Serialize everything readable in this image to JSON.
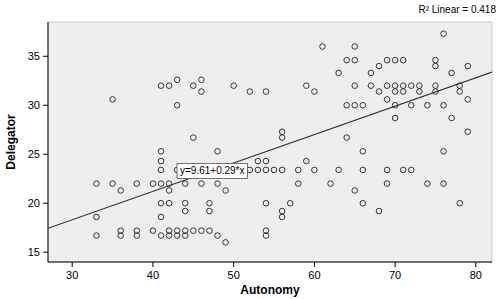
{
  "chart_data": {
    "type": "scatter",
    "x_label": "Autonomy",
    "y_label": "Delegator",
    "annotations": [
      "R² Linear = 0.418",
      "y=9.61+0.29*x"
    ],
    "fit": {
      "intercept": 9.61,
      "slope": 0.29
    },
    "xlim": [
      27,
      82
    ],
    "ylim": [
      14,
      38.5
    ],
    "xticks": [
      30,
      40,
      50,
      60,
      70,
      80
    ],
    "yticks": [
      15,
      20,
      25,
      30,
      35
    ],
    "grid": false,
    "marker": "open-circle",
    "color": "#222222",
    "x": [
      33,
      33,
      33,
      35,
      35,
      36,
      36,
      36,
      38,
      38,
      38,
      40,
      40,
      41,
      41,
      41,
      41,
      41,
      41,
      41,
      41,
      42,
      42,
      42,
      42,
      42,
      42,
      43,
      43,
      43,
      43,
      43,
      44,
      44,
      44,
      44,
      44,
      44,
      45,
      45,
      45,
      45,
      46,
      46,
      46,
      46,
      47,
      47,
      47,
      47,
      48,
      48,
      48,
      48,
      49,
      49,
      49,
      50,
      50,
      51,
      52,
      52,
      53,
      53,
      54,
      54,
      54,
      54,
      54,
      54,
      55,
      56,
      56,
      56,
      56,
      56,
      57,
      58,
      58,
      59,
      59,
      60,
      60,
      61,
      62,
      63,
      63,
      64,
      64,
      64,
      65,
      65,
      65,
      65,
      65,
      66,
      66,
      66,
      66,
      67,
      67,
      68,
      68,
      68,
      69,
      69,
      69,
      69,
      69,
      70,
      70,
      70,
      70,
      70,
      71,
      71,
      71,
      71,
      72,
      72,
      72,
      73,
      73,
      74,
      74,
      75,
      75,
      75,
      75,
      76,
      76,
      76,
      76,
      77,
      77,
      78,
      78,
      78,
      79,
      79,
      79
    ],
    "values": [
      16.7,
      18.6,
      22,
      30.6,
      22,
      17.2,
      16.7,
      21.3,
      22,
      17.2,
      16.7,
      22,
      17.2,
      23.4,
      22,
      20,
      18.6,
      16.7,
      25.3,
      32,
      24.3,
      22,
      21.3,
      20,
      17.2,
      16.7,
      32,
      23.4,
      17.2,
      16.7,
      32.6,
      30,
      23.4,
      22,
      17.2,
      16.7,
      20,
      19.2,
      23.4,
      17.2,
      26.7,
      32,
      22,
      17.2,
      31.4,
      32.6,
      23.4,
      20,
      17.2,
      19.2,
      23.4,
      25.3,
      16.7,
      22,
      23.4,
      21.3,
      16,
      23.4,
      32,
      23.4,
      23.4,
      31.4,
      23.4,
      24.3,
      23.4,
      17.2,
      16.7,
      24.3,
      20,
      31.4,
      23.4,
      23.4,
      27.3,
      26.7,
      19.2,
      18.6,
      20,
      23.4,
      22,
      32,
      24.3,
      31.4,
      23.4,
      36,
      22,
      23.4,
      33.3,
      30,
      34.6,
      26.7,
      36,
      34.6,
      32,
      30,
      21.3,
      30,
      25.3,
      23.4,
      20,
      32,
      33.3,
      31.4,
      34,
      19.2,
      32,
      34.6,
      30.6,
      23.4,
      22,
      32,
      30,
      31.4,
      28.7,
      34.6,
      32,
      34.6,
      31.4,
      23.4,
      30,
      32,
      23.4,
      32,
      31.4,
      22,
      30,
      32,
      34,
      31.4,
      34.6,
      37.3,
      25.3,
      30,
      22,
      33.3,
      28.7,
      31.4,
      32,
      20,
      34,
      27.3,
      30.6
    ]
  }
}
